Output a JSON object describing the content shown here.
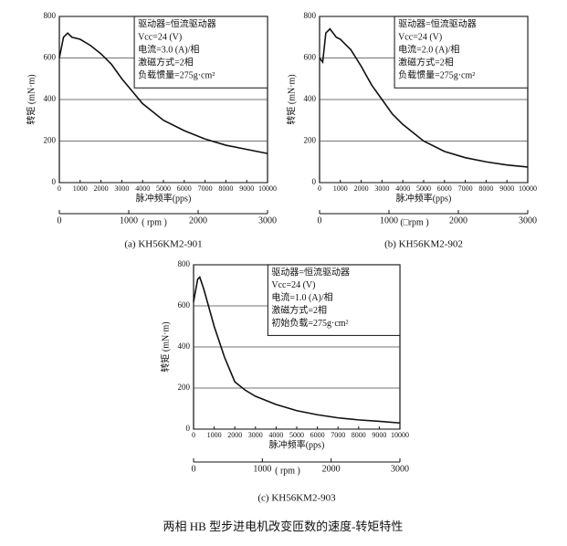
{
  "chart_data": [
    {
      "type": "line",
      "subtitle": "(a) KH56KM2-901",
      "ylabel": "转矩 (mN·m)",
      "xlabel": "脉冲频率(pps)",
      "x2label": "( rpm )",
      "annotation": [
        "驱动器=恒流驱动器",
        "Vcc=24 (V)",
        "电流=3.0 (A)/相",
        "激磁方式=2相",
        "负载惯量=275g·cm²"
      ],
      "x": [
        0,
        200,
        400,
        600,
        1000,
        1500,
        2000,
        2500,
        3000,
        3500,
        4000,
        4500,
        5000,
        6000,
        7000,
        8000,
        9000,
        10000
      ],
      "series": [
        {
          "color": "#111111",
          "values": [
            600,
            700,
            720,
            700,
            690,
            660,
            620,
            570,
            500,
            440,
            380,
            340,
            300,
            250,
            210,
            180,
            160,
            140
          ]
        }
      ],
      "xlim": [
        0,
        10000
      ],
      "xticks": [
        0,
        1000,
        2000,
        3000,
        4000,
        5000,
        6000,
        7000,
        8000,
        9000,
        10000
      ],
      "ylim": [
        0,
        800
      ],
      "yticks": [
        0,
        200,
        400,
        600,
        800
      ],
      "x2lim": [
        0,
        3000
      ],
      "x2ticks": [
        0,
        1000,
        2000,
        3000
      ],
      "grid": true
    },
    {
      "type": "line",
      "subtitle": "(b) KH56KM2-902",
      "ylabel": "转矩 (mN·m)",
      "xlabel": "脉冲频率(pps)",
      "x2label": "(□rpm )",
      "annotation": [
        "驱动器=恒流驱动器",
        "Vcc=24 (V)",
        "电流=2.0 (A)/相",
        "激磁方式=2相",
        "负载惯量=275g·cm²"
      ],
      "x": [
        0,
        150,
        300,
        500,
        800,
        1000,
        1500,
        2000,
        2500,
        3000,
        3500,
        4000,
        4500,
        5000,
        6000,
        7000,
        8000,
        9000,
        10000
      ],
      "series": [
        {
          "color": "#111111",
          "values": [
            600,
            580,
            720,
            740,
            700,
            690,
            640,
            560,
            470,
            400,
            330,
            280,
            240,
            200,
            150,
            120,
            100,
            85,
            75
          ]
        }
      ],
      "xlim": [
        0,
        10000
      ],
      "xticks": [
        0,
        1000,
        2000,
        3000,
        4000,
        5000,
        6000,
        7000,
        8000,
        9000,
        10000
      ],
      "ylim": [
        0,
        800
      ],
      "yticks": [
        0,
        200,
        400,
        600,
        800
      ],
      "x2lim": [
        0,
        3000
      ],
      "x2ticks": [
        0,
        1000,
        2000,
        3000
      ],
      "grid": true
    },
    {
      "type": "line",
      "subtitle": "(c) KH56KM2-903",
      "ylabel": "转矩 (mN·m)",
      "xlabel": "脉冲频率(pps)",
      "x2label": "( rpm )",
      "annotation": [
        "驱动器=恒流驱动器",
        "Vcc=24 (V)",
        "电流=1.0 (A)/相",
        "激磁方式=2相",
        "初始负载=275g·cm²"
      ],
      "x": [
        0,
        200,
        300,
        500,
        1000,
        1500,
        2000,
        2500,
        3000,
        3500,
        4000,
        5000,
        6000,
        7000,
        8000,
        9000,
        10000
      ],
      "series": [
        {
          "color": "#111111",
          "values": [
            620,
            730,
            740,
            680,
            500,
            350,
            230,
            190,
            160,
            140,
            120,
            90,
            70,
            55,
            45,
            38,
            30
          ]
        }
      ],
      "xlim": [
        0,
        10000
      ],
      "xticks": [
        0,
        1000,
        2000,
        3000,
        4000,
        5000,
        6000,
        7000,
        8000,
        9000,
        10000
      ],
      "ylim": [
        0,
        800
      ],
      "yticks": [
        0,
        200,
        400,
        600,
        800
      ],
      "x2lim": [
        0,
        3000
      ],
      "x2ticks": [
        0,
        1000,
        2000,
        3000
      ],
      "grid": true
    }
  ],
  "caption": "两相 HB 型步进电机改变匝数的速度-转矩特性"
}
